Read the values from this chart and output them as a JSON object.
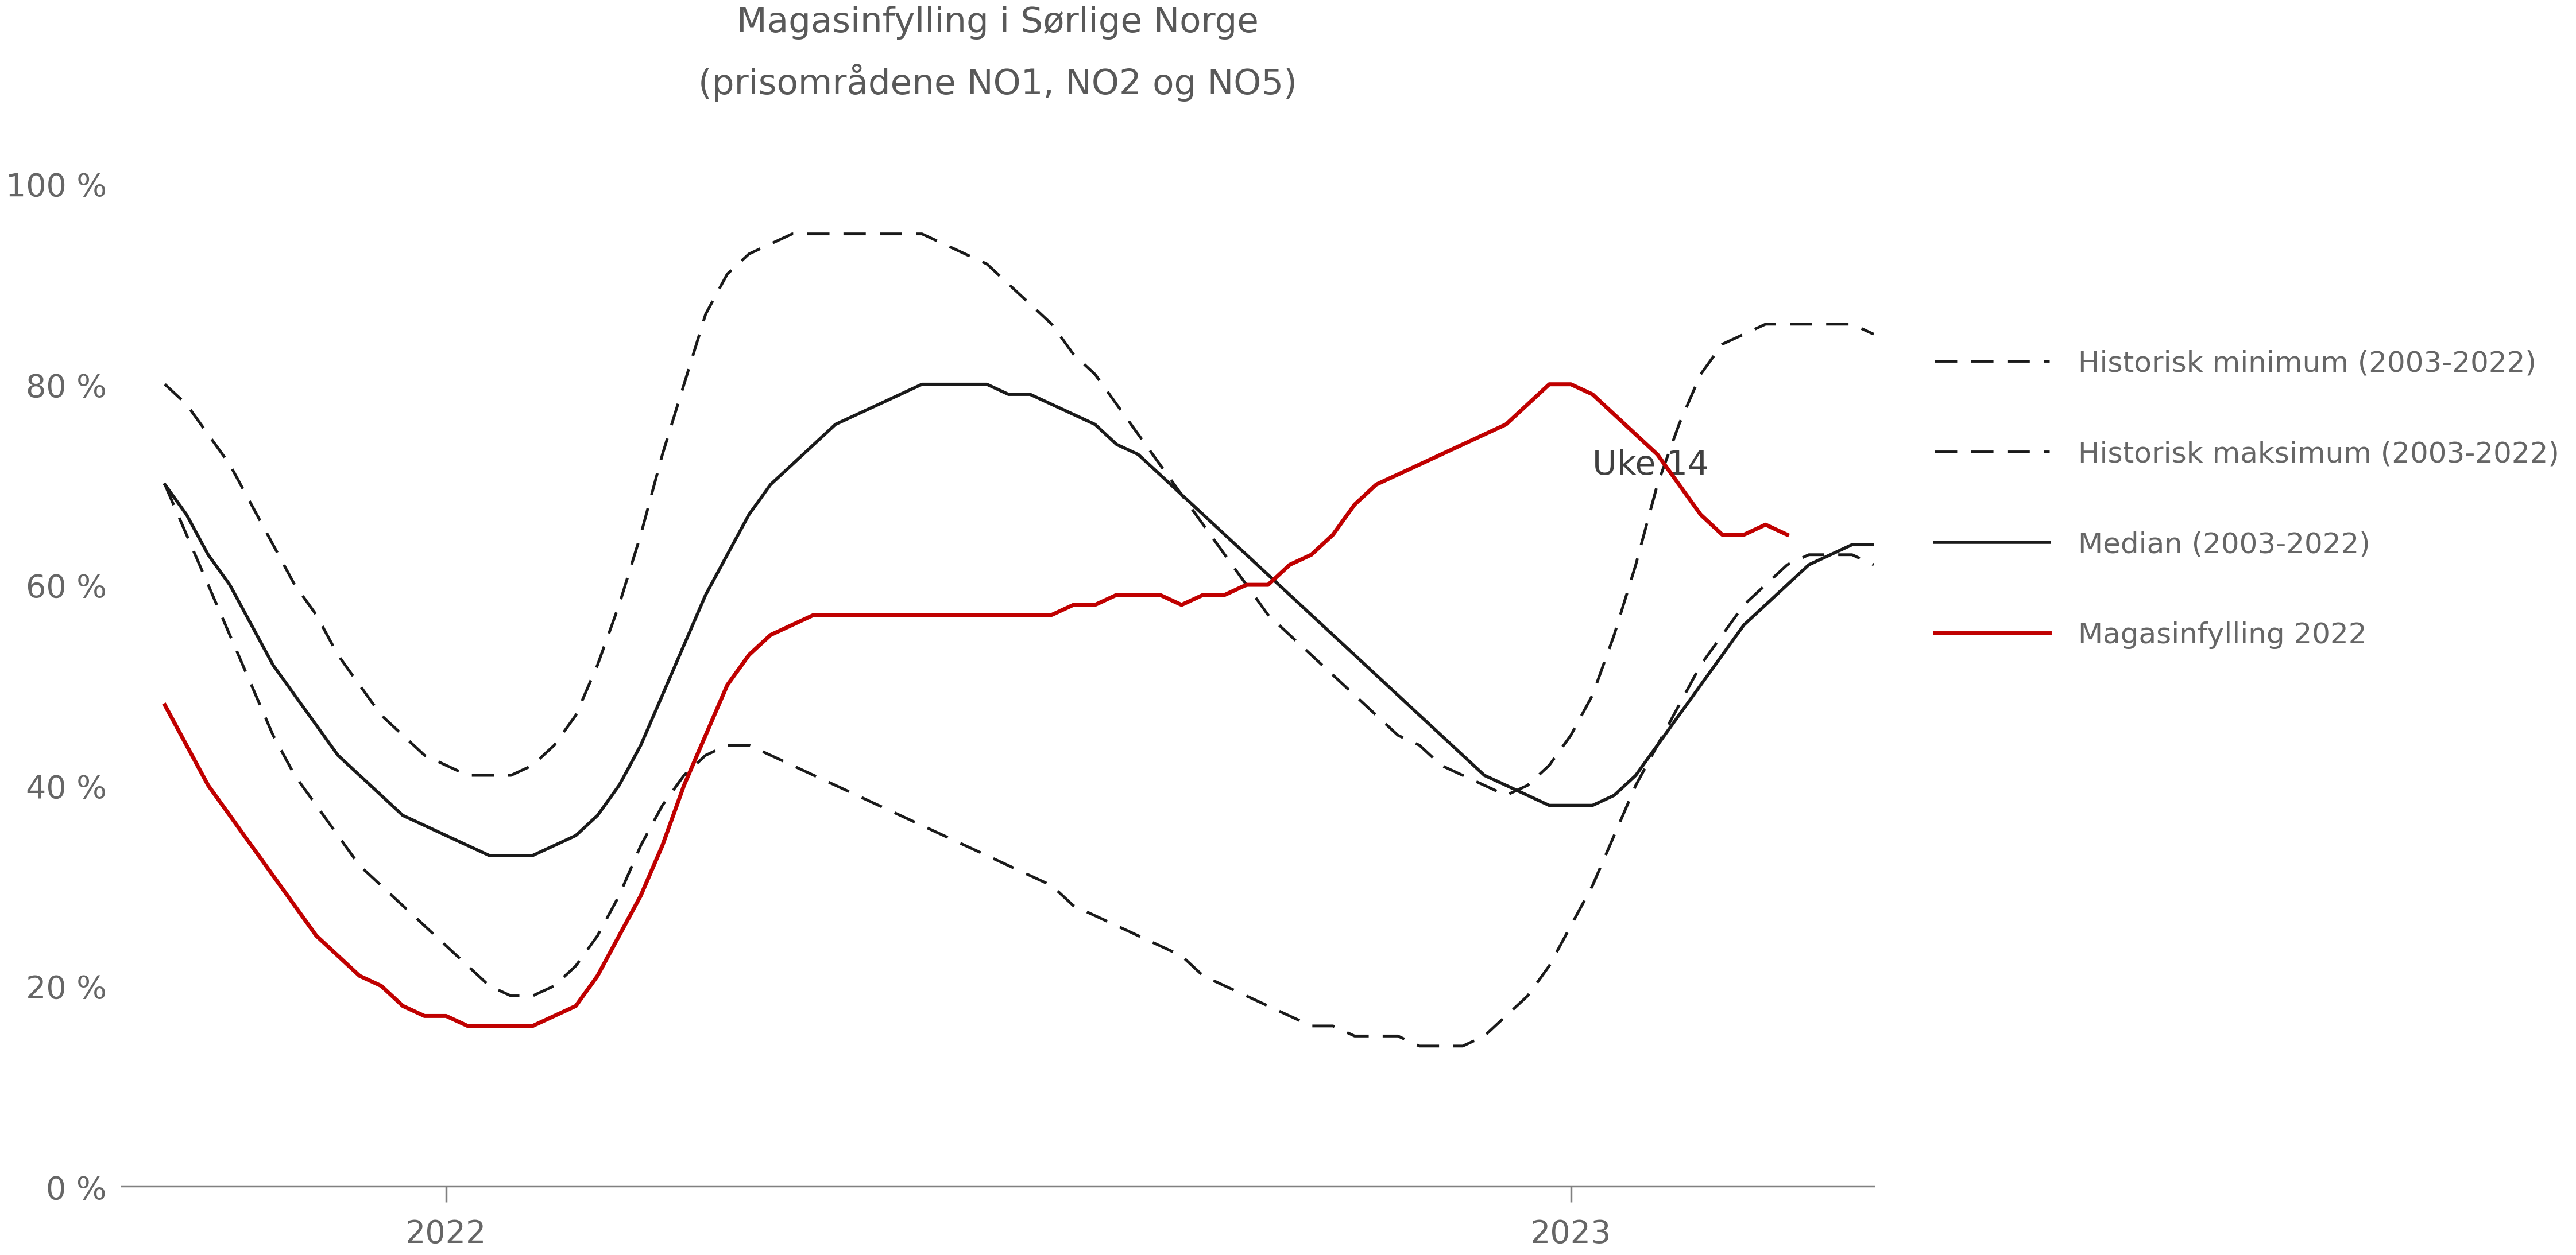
{
  "title": "Magasinfylling i Sørlige Norge",
  "subtitle": "(prisområdene NO1, NO2 og NO5)",
  "title_color": "#595959",
  "line_color_dashed": "#1a1a1a",
  "line_color_median": "#1a1a1a",
  "line_color_2022": "#c00000",
  "background_color": "#ffffff",
  "tick_color": "#666666",
  "legend_labels": [
    "Historisk minimum (2003-2022)",
    "Historisk maksimum (2003-2022)",
    "Median (2003-2022)",
    "Magasinfylling 2022"
  ],
  "uke14_label": "Uke 14",
  "ylim": [
    0,
    105
  ],
  "yticks": [
    0,
    20,
    40,
    60,
    80,
    100
  ],
  "ytick_labels": [
    "0 %",
    "20 %",
    "40 %",
    "60 %",
    "80 %",
    "100 %"
  ],
  "n_weeks": 80,
  "xtick_pos": [
    13,
    65
  ],
  "xtick_labels": [
    "2022",
    "2023"
  ],
  "uke14_x": 66,
  "uke14_y": 72,
  "hist_min": [
    70,
    65,
    60,
    55,
    50,
    45,
    41,
    38,
    35,
    32,
    30,
    28,
    26,
    24,
    22,
    20,
    19,
    19,
    20,
    22,
    25,
    29,
    34,
    38,
    41,
    43,
    44,
    44,
    43,
    42,
    41,
    40,
    39,
    38,
    37,
    36,
    35,
    34,
    33,
    32,
    31,
    30,
    28,
    27,
    26,
    25,
    24,
    23,
    21,
    20,
    19,
    18,
    17,
    16,
    16,
    15,
    15,
    15,
    14,
    14,
    14,
    15,
    17,
    19,
    22,
    26,
    30,
    35,
    40,
    44,
    48,
    52,
    55,
    58,
    60,
    62,
    63,
    63,
    63,
    62
  ],
  "hist_max": [
    80,
    78,
    75,
    72,
    68,
    64,
    60,
    57,
    53,
    50,
    47,
    45,
    43,
    42,
    41,
    41,
    41,
    42,
    44,
    47,
    52,
    58,
    65,
    73,
    80,
    87,
    91,
    93,
    94,
    95,
    95,
    95,
    95,
    95,
    95,
    95,
    94,
    93,
    92,
    90,
    88,
    86,
    83,
    81,
    78,
    75,
    72,
    69,
    66,
    63,
    60,
    57,
    55,
    53,
    51,
    49,
    47,
    45,
    44,
    42,
    41,
    40,
    39,
    40,
    42,
    45,
    49,
    55,
    62,
    70,
    76,
    81,
    84,
    85,
    86,
    86,
    86,
    86,
    86,
    85
  ],
  "median": [
    70,
    67,
    63,
    60,
    56,
    52,
    49,
    46,
    43,
    41,
    39,
    37,
    36,
    35,
    34,
    33,
    33,
    33,
    34,
    35,
    37,
    40,
    44,
    49,
    54,
    59,
    63,
    67,
    70,
    72,
    74,
    76,
    77,
    78,
    79,
    80,
    80,
    80,
    80,
    79,
    79,
    78,
    77,
    76,
    74,
    73,
    71,
    69,
    67,
    65,
    63,
    61,
    59,
    57,
    55,
    53,
    51,
    49,
    47,
    45,
    43,
    41,
    40,
    39,
    38,
    38,
    38,
    39,
    41,
    44,
    47,
    50,
    53,
    56,
    58,
    60,
    62,
    63,
    64,
    64
  ],
  "actual_2022": [
    48,
    44,
    40,
    37,
    34,
    31,
    28,
    25,
    23,
    21,
    20,
    18,
    17,
    17,
    16,
    16,
    16,
    16,
    17,
    18,
    21,
    25,
    29,
    34,
    40,
    45,
    50,
    53,
    55,
    56,
    57,
    57,
    57,
    57,
    57,
    57,
    57,
    57,
    57,
    57,
    57,
    57,
    58,
    58,
    59,
    59,
    59,
    58,
    59,
    59,
    60,
    60,
    62,
    63,
    65,
    68,
    70,
    71,
    72,
    73,
    74,
    75,
    76,
    78,
    80,
    80,
    79,
    77,
    75,
    73,
    70,
    67,
    65,
    65,
    66,
    65
  ]
}
